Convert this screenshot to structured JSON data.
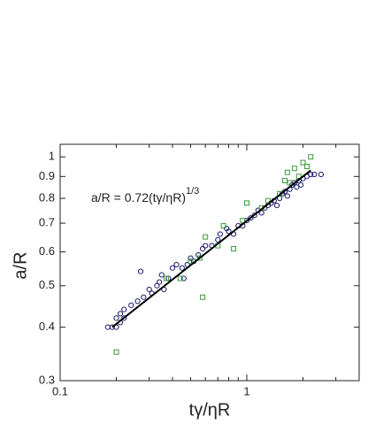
{
  "chart_data": {
    "type": "scatter",
    "x_label": "tγ/ηR",
    "y_label": "a/R",
    "annotation": {
      "text": "a/R = 0.72(tγ/ηR)",
      "superscript": "1/3"
    },
    "log_x": true,
    "log_y": true,
    "xlim": [
      0.1,
      4
    ],
    "ylim": [
      0.3,
      1.07
    ],
    "xticks": [
      0.1,
      1
    ],
    "xminorticks": [
      0.2,
      0.3,
      0.4,
      0.5,
      0.6,
      0.7,
      0.8,
      0.9,
      2,
      3
    ],
    "yticks": [
      0.3,
      0.4,
      0.5,
      0.6,
      0.7,
      0.8,
      0.9,
      1
    ],
    "series": [
      {
        "marker": "circle",
        "color": "#1a1a6e",
        "x": [
          0.18,
          0.19,
          0.2,
          0.2,
          0.21,
          0.21,
          0.22,
          0.22,
          0.26,
          0.27,
          0.28,
          0.3,
          0.31,
          0.33,
          0.34,
          0.35,
          0.38,
          0.4,
          0.42,
          0.45,
          0.48,
          0.5,
          0.52,
          0.55,
          0.58,
          0.6,
          0.65,
          0.7,
          0.72,
          0.78,
          0.8,
          0.85,
          0.9,
          0.95,
          1.0,
          1.05,
          1.1,
          1.15,
          1.2,
          1.25,
          1.3,
          1.35,
          1.4,
          1.45,
          1.5,
          1.55,
          1.6,
          1.65,
          1.7,
          1.75,
          1.8,
          1.85,
          1.9,
          1.95,
          2.0,
          2.1,
          2.2,
          2.3,
          2.5,
          0.24,
          0.36,
          0.46
        ],
        "values": [
          0.4,
          0.4,
          0.4,
          0.42,
          0.41,
          0.43,
          0.44,
          0.42,
          0.46,
          0.54,
          0.47,
          0.49,
          0.48,
          0.5,
          0.51,
          0.53,
          0.52,
          0.55,
          0.56,
          0.55,
          0.56,
          0.58,
          0.57,
          0.59,
          0.61,
          0.62,
          0.62,
          0.64,
          0.66,
          0.68,
          0.67,
          0.66,
          0.69,
          0.69,
          0.71,
          0.72,
          0.73,
          0.75,
          0.74,
          0.76,
          0.77,
          0.78,
          0.79,
          0.77,
          0.8,
          0.82,
          0.83,
          0.81,
          0.84,
          0.86,
          0.87,
          0.85,
          0.88,
          0.86,
          0.89,
          0.9,
          0.91,
          0.91,
          0.91,
          0.45,
          0.49,
          0.52
        ]
      },
      {
        "marker": "square",
        "color": "#3a9a3a",
        "x": [
          0.2,
          0.37,
          0.44,
          0.5,
          0.56,
          0.58,
          0.6,
          0.7,
          0.75,
          0.85,
          0.95,
          1.0,
          1.2,
          1.5,
          1.6,
          1.7,
          1.8,
          1.9,
          2.0,
          2.1,
          2.2,
          1.65,
          1.3
        ],
        "values": [
          0.35,
          0.52,
          0.52,
          0.57,
          0.58,
          0.47,
          0.65,
          0.62,
          0.69,
          0.61,
          0.71,
          0.78,
          0.76,
          0.82,
          0.88,
          0.87,
          0.94,
          0.9,
          0.97,
          0.95,
          1.0,
          0.92,
          0.79
        ]
      },
      {
        "marker": "line",
        "color": "#000000",
        "x": [
          0.19,
          2.2
        ],
        "values": [
          0.4,
          0.93
        ]
      }
    ]
  }
}
